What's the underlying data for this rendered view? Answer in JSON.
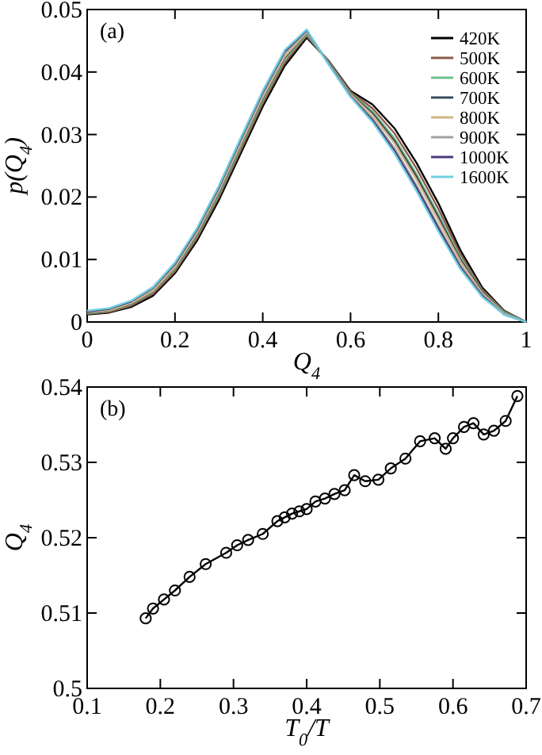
{
  "chart_data": [
    {
      "type": "line",
      "xlabel": "Q$_{4}$",
      "ylabel": "p(Q$_{4}$)",
      "annotations": [
        "(a)"
      ],
      "legend": "top right",
      "marker": "none",
      "line_style": "solid",
      "x": [
        0,
        0.05,
        0.1,
        0.15,
        0.2,
        0.25,
        0.3,
        0.35,
        0.4,
        0.45,
        0.5,
        0.55,
        0.6,
        0.65,
        0.7,
        0.75,
        0.8,
        0.85,
        0.9,
        0.95,
        1
      ],
      "xlim": [
        0,
        1
      ],
      "ylim": [
        0,
        0.05
      ],
      "xticks": [
        0,
        0.2,
        0.4,
        0.6,
        0.8,
        1
      ],
      "yticks": [
        0,
        0.01,
        0.02,
        0.03,
        0.04,
        0.05
      ],
      "series": [
        {
          "name": "420K",
          "color": "#000000",
          "values": [
            0.0012,
            0.0015,
            0.0024,
            0.0042,
            0.0078,
            0.013,
            0.0195,
            0.027,
            0.0345,
            0.041,
            0.0455,
            0.0418,
            0.037,
            0.0348,
            0.031,
            0.0255,
            0.019,
            0.0115,
            0.0055,
            0.0018,
            0
          ]
        },
        {
          "name": "500K",
          "color": "#8b5a4a",
          "values": [
            0.0013,
            0.0016,
            0.0026,
            0.0045,
            0.0081,
            0.0134,
            0.02,
            0.0275,
            0.035,
            0.0415,
            0.0458,
            0.0417,
            0.0368,
            0.0342,
            0.0302,
            0.0246,
            0.0181,
            0.0109,
            0.0052,
            0.0017,
            0
          ]
        },
        {
          "name": "600K",
          "color": "#6fbf8f",
          "values": [
            0.0014,
            0.0018,
            0.0028,
            0.0048,
            0.0085,
            0.0138,
            0.0204,
            0.028,
            0.0355,
            0.042,
            0.046,
            0.0416,
            0.0366,
            0.0337,
            0.0294,
            0.0237,
            0.0172,
            0.0103,
            0.0049,
            0.0016,
            0
          ]
        },
        {
          "name": "700K",
          "color": "#3a4a5a",
          "values": [
            0.0015,
            0.0019,
            0.0029,
            0.0049,
            0.0087,
            0.014,
            0.0207,
            0.0283,
            0.0358,
            0.0423,
            0.0462,
            0.0415,
            0.0365,
            0.0334,
            0.029,
            0.0233,
            0.0168,
            0.01,
            0.0048,
            0.0015,
            0
          ]
        },
        {
          "name": "800K",
          "color": "#d4b483",
          "values": [
            0.0016,
            0.0019,
            0.003,
            0.005,
            0.0088,
            0.0142,
            0.0209,
            0.0285,
            0.036,
            0.0425,
            0.0463,
            0.0414,
            0.0364,
            0.0331,
            0.0286,
            0.0228,
            0.0163,
            0.0097,
            0.0046,
            0.0014,
            0
          ]
        },
        {
          "name": "900K",
          "color": "#a0a0a0",
          "values": [
            0.0017,
            0.0021,
            0.0032,
            0.0053,
            0.0092,
            0.0146,
            0.0213,
            0.029,
            0.0365,
            0.043,
            0.0465,
            0.0413,
            0.0362,
            0.0326,
            0.0278,
            0.0219,
            0.0154,
            0.0091,
            0.0043,
            0.0013,
            0
          ]
        },
        {
          "name": "1000K",
          "color": "#4b3a7a",
          "values": [
            0.0017,
            0.0021,
            0.0033,
            0.0055,
            0.0093,
            0.0148,
            0.0216,
            0.0293,
            0.0368,
            0.0433,
            0.0467,
            0.0413,
            0.0361,
            0.0323,
            0.0274,
            0.0215,
            0.015,
            0.0088,
            0.0042,
            0.0012,
            0
          ]
        },
        {
          "name": "1600K",
          "color": "#6fd0e0",
          "values": [
            0.0018,
            0.0022,
            0.0034,
            0.0056,
            0.0095,
            0.015,
            0.0218,
            0.0295,
            0.037,
            0.0435,
            0.0468,
            0.0412,
            0.036,
            0.032,
            0.027,
            0.021,
            0.0145,
            0.0085,
            0.004,
            0.0012,
            0
          ]
        }
      ]
    },
    {
      "type": "line",
      "xlabel": "T$_{0}$/T",
      "ylabel": "Q$_{4}$",
      "annotations": [
        "(b)"
      ],
      "legend": false,
      "marker": "circle",
      "line_style": "solid",
      "x": [
        0.18,
        0.19,
        0.205,
        0.22,
        0.24,
        0.262,
        0.29,
        0.305,
        0.32,
        0.34,
        0.36,
        0.37,
        0.38,
        0.39,
        0.4,
        0.412,
        0.425,
        0.438,
        0.452,
        0.465,
        0.48,
        0.498,
        0.515,
        0.535,
        0.555,
        0.575,
        0.59,
        0.6,
        0.615,
        0.628,
        0.642,
        0.656,
        0.672,
        0.688
      ],
      "xlim": [
        0.1,
        0.7
      ],
      "ylim": [
        0.5,
        0.54
      ],
      "xticks": [
        0.1,
        0.2,
        0.3,
        0.4,
        0.5,
        0.6,
        0.7
      ],
      "yticks": [
        0.5,
        0.51,
        0.52,
        0.53,
        0.54
      ],
      "series": [
        {
          "color": "#000000",
          "values": [
            0.5093,
            0.5106,
            0.5118,
            0.513,
            0.5148,
            0.5165,
            0.518,
            0.519,
            0.5197,
            0.5205,
            0.5222,
            0.5227,
            0.5232,
            0.5235,
            0.5238,
            0.5248,
            0.5252,
            0.5258,
            0.5263,
            0.5283,
            0.5275,
            0.5277,
            0.5292,
            0.5305,
            0.5328,
            0.5332,
            0.5318,
            0.5332,
            0.5347,
            0.5352,
            0.5337,
            0.5342,
            0.5355,
            0.5388
          ]
        }
      ]
    }
  ]
}
